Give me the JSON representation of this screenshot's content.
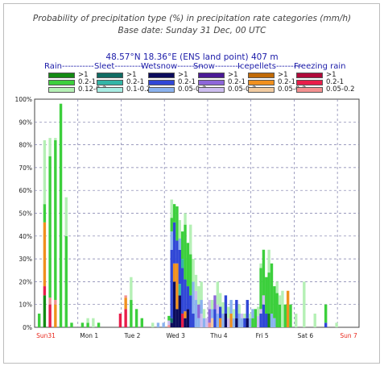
{
  "header": {
    "title_line1": "Probability of precipitation type (%) in precipitation rate categories (mm/h)",
    "title_line2": "Base date: Sunday 31 Dec, 00 UTC",
    "location": "48.57°N 18.36°E (ENS land point) 407 m"
  },
  "legend": {
    "groups": [
      {
        "name": "Rain-----------",
        "items": [
          {
            "label": ">1",
            "color": "#138a13"
          },
          {
            "label": "0.2-1",
            "color": "#3ccf3c"
          },
          {
            "label": "0.12-0.2",
            "color": "#b5f0b5"
          }
        ]
      },
      {
        "name": "Sleet----------",
        "items": [
          {
            "label": ">1",
            "color": "#106b63"
          },
          {
            "label": "0.2-1",
            "color": "#33b5a6"
          },
          {
            "label": "0.1-0.2",
            "color": "#a8ece3"
          }
        ]
      },
      {
        "name": "Wetsnow---------",
        "items": [
          {
            "label": ">1",
            "color": "#0b0b5c"
          },
          {
            "label": "0.2-1",
            "color": "#3047d6"
          },
          {
            "label": "0.05-0.2",
            "color": "#8ab2ee"
          }
        ]
      },
      {
        "name": "Snow---------",
        "items": [
          {
            "label": ">1",
            "color": "#4a1a95"
          },
          {
            "label": "0.2-1",
            "color": "#8d66d9"
          },
          {
            "label": "0.05-0.2",
            "color": "#cdbdef"
          }
        ]
      },
      {
        "name": "Icepellets---------",
        "items": [
          {
            "label": ">1",
            "color": "#c06a08"
          },
          {
            "label": "0.2-1",
            "color": "#f0901e"
          },
          {
            "label": "0.05-0.2",
            "color": "#f1cba0"
          }
        ]
      },
      {
        "name": "Freezing rain",
        "items": [
          {
            "label": ">1",
            "color": "#b00a3a"
          },
          {
            "label": "0.2-1",
            "color": "#e81d4a"
          },
          {
            "label": "0.05-0.2",
            "color": "#f39090"
          }
        ]
      }
    ]
  },
  "chart_data": {
    "type": "bar",
    "title": "Probability of precipitation type (%) in precipitation rate categories (mm/h)",
    "subtitle": "Base date: Sunday 31 Dec, 00 UTC",
    "ylim": [
      0,
      100
    ],
    "y_ticks": [
      "0%",
      "10%",
      "20%",
      "30%",
      "40%",
      "50%",
      "60%",
      "70%",
      "80%",
      "90%",
      "100%"
    ],
    "x_ticks": [
      {
        "label": "Sun31",
        "day": 0,
        "color": "#e8261b"
      },
      {
        "label": "Mon 1",
        "day": 1,
        "color": "#222222"
      },
      {
        "label": "Tue 2",
        "day": 2,
        "color": "#222222"
      },
      {
        "label": "Wed 3",
        "day": 3,
        "color": "#222222"
      },
      {
        "label": "Thu 4",
        "day": 4,
        "color": "#222222"
      },
      {
        "label": "Fri 5",
        "day": 5,
        "color": "#222222"
      },
      {
        "label": "Sat 6",
        "day": 6,
        "color": "#222222"
      },
      {
        "label": "Sun 7",
        "day": 7,
        "color": "#e8261b"
      }
    ],
    "grid": true,
    "series_order": [
      "Rain >1",
      "Rain 0.2-1",
      "Rain 0.12-0.2",
      "Sleet >1",
      "Sleet 0.2-1",
      "Sleet 0.1-0.2",
      "Wetsnow >1",
      "Wetsnow 0.2-1",
      "Wetsnow 0.05-0.2",
      "Snow >1",
      "Snow 0.2-1",
      "Snow 0.05-0.2",
      "Icepellets >1",
      "Icepellets 0.2-1",
      "Icepellets 0.05-0.2",
      "Freezing rain >1",
      "Freezing rain 0.2-1",
      "Freezing rain 0.05-0.2"
    ],
    "bars": [
      {
        "t": 0.0,
        "segs": [
          [
            "Rain 0.2-1",
            6
          ]
        ]
      },
      {
        "t": 0.125,
        "segs": [
          [
            "Rain >1",
            14
          ],
          [
            "Freezing rain 0.2-1",
            4
          ],
          [
            "Icepellets 0.2-1",
            28
          ],
          [
            "Rain 0.2-1",
            8
          ],
          [
            "Rain 0.12-0.2",
            28
          ]
        ]
      },
      {
        "t": 0.25,
        "segs": [
          [
            "Freezing rain 0.2-1",
            10
          ],
          [
            "Freezing rain 0.05-0.2",
            3
          ],
          [
            "Rain 0.2-1",
            62
          ],
          [
            "Rain 0.12-0.2",
            8
          ]
        ]
      },
      {
        "t": 0.375,
        "segs": [
          [
            "Icepellets 0.2-1",
            10
          ],
          [
            "Freezing rain 0.05-0.2",
            2
          ],
          [
            "Rain 0.2-1",
            70
          ],
          [
            "Rain 0.12-0.2",
            1
          ]
        ]
      },
      {
        "t": 0.5,
        "segs": [
          [
            "Rain 0.2-1",
            98
          ]
        ]
      },
      {
        "t": 0.625,
        "segs": [
          [
            "Rain 0.2-1",
            40
          ],
          [
            "Rain 0.12-0.2",
            17
          ]
        ]
      },
      {
        "t": 0.75,
        "segs": [
          [
            "Rain 0.2-1",
            2
          ]
        ]
      },
      {
        "t": 1.0,
        "segs": [
          [
            "Rain 0.2-1",
            2
          ]
        ]
      },
      {
        "t": 1.125,
        "segs": [
          [
            "Rain 0.2-1",
            2
          ],
          [
            "Rain 0.12-0.2",
            2
          ]
        ]
      },
      {
        "t": 1.25,
        "segs": [
          [
            "Rain 0.12-0.2",
            4
          ]
        ]
      },
      {
        "t": 1.375,
        "segs": [
          [
            "Rain 0.2-1",
            2
          ]
        ]
      },
      {
        "t": 1.875,
        "segs": [
          [
            "Freezing rain 0.2-1",
            6
          ]
        ]
      },
      {
        "t": 2.0,
        "segs": [
          [
            "Freezing rain 0.2-1",
            8
          ],
          [
            "Icepellets 0.2-1",
            5
          ],
          [
            "Freezing rain 0.05-0.2",
            1
          ]
        ]
      },
      {
        "t": 2.125,
        "segs": [
          [
            "Rain 0.2-1",
            12
          ],
          [
            "Rain 0.12-0.2",
            10
          ]
        ]
      },
      {
        "t": 2.25,
        "segs": [
          [
            "Rain 0.2-1",
            8
          ]
        ]
      },
      {
        "t": 2.375,
        "segs": [
          [
            "Rain 0.2-1",
            4
          ]
        ]
      },
      {
        "t": 2.625,
        "segs": [
          [
            "Rain 0.12-0.2",
            2
          ]
        ]
      },
      {
        "t": 2.75,
        "segs": [
          [
            "Wetsnow 0.05-0.2",
            2
          ]
        ]
      },
      {
        "t": 2.875,
        "segs": [
          [
            "Wetsnow 0.05-0.2",
            2
          ]
        ]
      },
      {
        "t": 3.0,
        "segs": [
          [
            "Freezing rain 0.05-0.2",
            1
          ],
          [
            "Snow 0.05-0.2",
            2
          ],
          [
            "Rain 0.2-1",
            2
          ]
        ]
      },
      {
        "t": 3.0625,
        "segs": [
          [
            "Wetsnow >1",
            2
          ],
          [
            "Sleet >1",
            2
          ],
          [
            "Wetsnow 0.2-1",
            30
          ],
          [
            "Wetsnow 0.05-0.2",
            8
          ],
          [
            "Rain 0.2-1",
            6
          ],
          [
            "Rain 0.12-0.2",
            8
          ]
        ]
      },
      {
        "t": 3.125,
        "segs": [
          [
            "Wetsnow >1",
            20
          ],
          [
            "Icepellets 0.2-1",
            8
          ],
          [
            "Wetsnow 0.2-1",
            18
          ],
          [
            "Rain 0.2-1",
            8
          ]
        ]
      },
      {
        "t": 3.1875,
        "segs": [
          [
            "Wetsnow >1",
            8
          ],
          [
            "Icepellets 0.2-1",
            20
          ],
          [
            "Wetsnow 0.2-1",
            10
          ],
          [
            "Rain 0.2-1",
            15
          ]
        ]
      },
      {
        "t": 3.25,
        "segs": [
          [
            "Wetsnow >1",
            14
          ],
          [
            "Sleet 0.2-1",
            5
          ],
          [
            "Wetsnow 0.2-1",
            15
          ],
          [
            "Wetsnow 0.05-0.2",
            5
          ],
          [
            "Rain 0.12-0.2",
            8
          ]
        ]
      },
      {
        "t": 3.3125,
        "segs": [
          [
            "Freezing rain 0.2-1",
            6
          ],
          [
            "Wetsnow 0.2-1",
            20
          ],
          [
            "Sleet 0.2-1",
            4
          ],
          [
            "Rain 0.2-1",
            12
          ]
        ]
      },
      {
        "t": 3.375,
        "segs": [
          [
            "Wetsnow >1",
            4
          ],
          [
            "Icepellets 0.2-1",
            3
          ],
          [
            "Wetsnow 0.2-1",
            14
          ],
          [
            "Rain 0.2-1",
            24
          ],
          [
            "Rain 0.12-0.2",
            5
          ]
        ]
      },
      {
        "t": 3.4375,
        "segs": [
          [
            "Wetsnow >1",
            8
          ],
          [
            "Wetsnow 0.2-1",
            10
          ],
          [
            "Rain 0.2-1",
            19
          ]
        ]
      },
      {
        "t": 3.5,
        "segs": [
          [
            "Wetsnow 0.2-1",
            14
          ],
          [
            "Rain 0.2-1",
            18
          ],
          [
            "Rain 0.12-0.2",
            13
          ]
        ]
      },
      {
        "t": 3.5625,
        "segs": [
          [
            "Wetsnow 0.2-1",
            6
          ],
          [
            "Wetsnow 0.05-0.2",
            14
          ],
          [
            "Rain 0.12-0.2",
            10
          ]
        ]
      },
      {
        "t": 3.625,
        "segs": [
          [
            "Wetsnow 0.05-0.2",
            12
          ],
          [
            "Snow 0.05-0.2",
            4
          ],
          [
            "Rain 0.12-0.2",
            7
          ]
        ]
      },
      {
        "t": 3.6875,
        "segs": [
          [
            "Wetsnow 0.05-0.2",
            4
          ],
          [
            "Snow 0.2-1",
            6
          ],
          [
            "Rain 0.12-0.2",
            8
          ]
        ]
      },
      {
        "t": 3.75,
        "segs": [
          [
            "Snow 0.05-0.2",
            6
          ],
          [
            "Wetsnow 0.05-0.2",
            6
          ],
          [
            "Rain 0.12-0.2",
            8
          ]
        ]
      },
      {
        "t": 3.8125,
        "segs": [
          [
            "Wetsnow 0.05-0.2",
            4
          ],
          [
            "Rain 0.12-0.2",
            4
          ]
        ]
      },
      {
        "t": 3.875,
        "segs": [
          [
            "Snow 0.05-0.2",
            4
          ]
        ]
      },
      {
        "t": 3.9375,
        "segs": [
          [
            "Freezing rain 0.05-0.2",
            2
          ],
          [
            "Snow 0.2-1",
            6
          ],
          [
            "Snow 0.05-0.2",
            4
          ]
        ]
      },
      {
        "t": 4.0,
        "segs": [
          [
            "Icepellets 0.05-0.2",
            4
          ],
          [
            "Wetsnow 0.05-0.2",
            4
          ],
          [
            "Rain 0.12-0.2",
            4
          ]
        ]
      },
      {
        "t": 4.0625,
        "segs": [
          [
            "Wetsnow 0.2-1",
            8
          ],
          [
            "Snow 0.2-1",
            6
          ]
        ]
      },
      {
        "t": 4.125,
        "segs": [
          [
            "Wetsnow 0.05-0.2",
            6
          ],
          [
            "Snow 0.05-0.2",
            4
          ],
          [
            "Rain 0.12-0.2",
            10
          ]
        ]
      },
      {
        "t": 4.1875,
        "segs": [
          [
            "Icepellets 0.2-1",
            4
          ],
          [
            "Wetsnow 0.2-1",
            5
          ],
          [
            "Rain 0.12-0.2",
            6
          ]
        ]
      },
      {
        "t": 4.25,
        "segs": [
          [
            "Wetsnow 0.05-0.2",
            6
          ],
          [
            "Rain 0.12-0.2",
            5
          ]
        ]
      },
      {
        "t": 4.3125,
        "segs": [
          [
            "Wetsnow >1",
            6
          ],
          [
            "Wetsnow 0.2-1",
            8
          ]
        ]
      },
      {
        "t": 4.375,
        "segs": [
          [
            "Snow 0.05-0.2",
            4
          ],
          [
            "Rain 0.12-0.2",
            5
          ]
        ]
      },
      {
        "t": 4.4375,
        "segs": [
          [
            "Icepellets 0.2-1",
            6
          ],
          [
            "Wetsnow 0.05-0.2",
            6
          ]
        ]
      },
      {
        "t": 4.5,
        "segs": [
          [
            "Wetsnow 0.05-0.2",
            4
          ],
          [
            "Rain 0.12-0.2",
            4
          ]
        ]
      },
      {
        "t": 4.5625,
        "segs": [
          [
            "Wetsnow >1",
            4
          ],
          [
            "Wetsnow 0.2-1",
            8
          ]
        ]
      },
      {
        "t": 4.625,
        "segs": [
          [
            "Wetsnow 0.05-0.2",
            6
          ],
          [
            "Rain 0.12-0.2",
            4
          ]
        ]
      },
      {
        "t": 4.6875,
        "segs": [
          [
            "Wetsnow 0.05-0.2",
            4
          ],
          [
            "Snow 0.05-0.2",
            2
          ]
        ]
      },
      {
        "t": 4.75,
        "segs": [
          [
            "Wetsnow 0.2-1",
            4
          ],
          [
            "Rain 0.12-0.2",
            2
          ]
        ]
      },
      {
        "t": 4.8125,
        "segs": [
          [
            "Wetsnow >1",
            4
          ],
          [
            "Wetsnow 0.2-1",
            8
          ]
        ]
      },
      {
        "t": 4.875,
        "segs": [
          [
            "Wetsnow 0.05-0.2",
            4
          ],
          [
            "Rain 0.12-0.2",
            2
          ]
        ]
      },
      {
        "t": 4.9375,
        "segs": [
          [
            "Rain 0.2-1",
            4
          ],
          [
            "Wetsnow 0.05-0.2",
            4
          ]
        ]
      },
      {
        "t": 5.0,
        "segs": [
          [
            "Rain 0.2-1",
            8
          ]
        ]
      },
      {
        "t": 5.0625,
        "segs": [
          [
            "Snow 0.05-0.2",
            5
          ],
          [
            "Rain 0.12-0.2",
            4
          ]
        ]
      },
      {
        "t": 5.125,
        "segs": [
          [
            "Wetsnow 0.2-1",
            6
          ],
          [
            "Snow 0.05-0.2",
            2
          ],
          [
            "Rain 0.2-1",
            18
          ],
          [
            "Rain 0.12-0.2",
            2
          ]
        ]
      },
      {
        "t": 5.1875,
        "segs": [
          [
            "Wetsnow 0.2-1",
            10
          ],
          [
            "Snow 0.05-0.2",
            4
          ],
          [
            "Rain 0.2-1",
            20
          ]
        ]
      },
      {
        "t": 5.25,
        "segs": [
          [
            "Wetsnow 0.2-1",
            6
          ],
          [
            "Rain 0.2-1",
            16
          ]
        ]
      },
      {
        "t": 5.3125,
        "segs": [
          [
            "Rain >1",
            6
          ],
          [
            "Rain 0.2-1",
            18
          ],
          [
            "Rain 0.12-0.2",
            10
          ]
        ]
      },
      {
        "t": 5.375,
        "segs": [
          [
            "Wetsnow 0.05-0.2",
            6
          ],
          [
            "Rain 0.2-1",
            22
          ]
        ]
      },
      {
        "t": 5.4375,
        "segs": [
          [
            "Wetsnow 0.05-0.2",
            4
          ],
          [
            "Rain 0.2-1",
            14
          ]
        ]
      },
      {
        "t": 5.5,
        "segs": [
          [
            "Rain 0.2-1",
            15
          ],
          [
            "Rain 0.12-0.2",
            5
          ]
        ]
      },
      {
        "t": 5.5625,
        "segs": [
          [
            "Rain 0.2-1",
            10
          ],
          [
            "Rain 0.12-0.2",
            4
          ]
        ]
      },
      {
        "t": 5.625,
        "segs": [
          [
            "Rain 0.12-0.2",
            16
          ]
        ]
      },
      {
        "t": 5.6875,
        "segs": [
          [
            "Rain 0.2-1",
            10
          ]
        ]
      },
      {
        "t": 5.75,
        "segs": [
          [
            "Icepellets 0.2-1",
            16
          ]
        ]
      },
      {
        "t": 5.8125,
        "segs": [
          [
            "Rain 0.2-1",
            10
          ]
        ]
      },
      {
        "t": 5.9375,
        "segs": [
          [
            "Rain 0.12-0.2",
            6
          ]
        ]
      },
      {
        "t": 6.125,
        "segs": [
          [
            "Rain 0.12-0.2",
            20
          ]
        ]
      },
      {
        "t": 6.375,
        "segs": [
          [
            "Rain 0.12-0.2",
            6
          ]
        ]
      },
      {
        "t": 6.625,
        "segs": [
          [
            "Wetsnow 0.2-1",
            2
          ],
          [
            "Rain 0.2-1",
            8
          ]
        ]
      },
      {
        "t": 6.875,
        "segs": [
          [
            "Rain 0.12-0.2",
            2
          ]
        ]
      }
    ]
  }
}
